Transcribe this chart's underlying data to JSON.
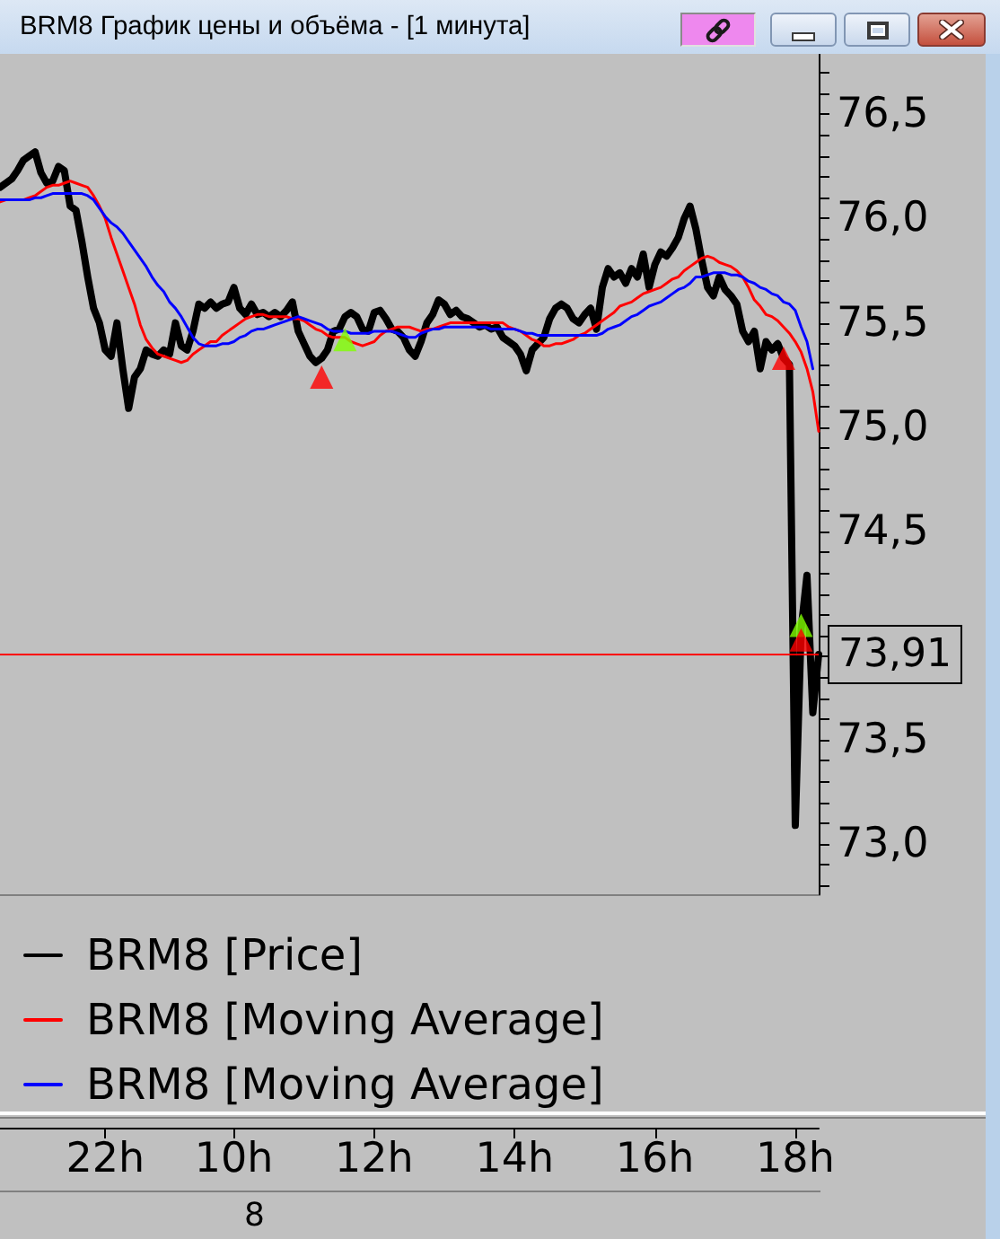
{
  "chart_data": {
    "type": "line",
    "title": "BRM8 График цены и объёма - [1 минута]",
    "categories": [
      null,
      null,
      null,
      null,
      null,
      null,
      null,
      null,
      null,
      null,
      null,
      null,
      null,
      null,
      null,
      null,
      null,
      null,
      "22h",
      null,
      null,
      null,
      null,
      null,
      null,
      null,
      null,
      null,
      null,
      null,
      null,
      null,
      null,
      null,
      null,
      null,
      null,
      null,
      null,
      null,
      "10h",
      null,
      null,
      null,
      null,
      null,
      null,
      null,
      null,
      null,
      null,
      null,
      null,
      null,
      null,
      null,
      null,
      null,
      null,
      null,
      null,
      null,
      null,
      null,
      "12h",
      null,
      null,
      null,
      null,
      null,
      null,
      null,
      null,
      null,
      null,
      null,
      null,
      null,
      null,
      null,
      null,
      null,
      null,
      null,
      null,
      null,
      null,
      null,
      "14h",
      null,
      null,
      null,
      null,
      null,
      null,
      null,
      null,
      null,
      null,
      null,
      null,
      null,
      null,
      null,
      null,
      null,
      null,
      null,
      null,
      null,
      null,
      null,
      "16h",
      null,
      null,
      null,
      null,
      null,
      null,
      null,
      null,
      null,
      null,
      null,
      null,
      null,
      null,
      null,
      null,
      null,
      null,
      null,
      null,
      null,
      null,
      null,
      "18h",
      null,
      null,
      null,
      null
    ],
    "series": [
      {
        "name": "BRM8 [Price]",
        "color": "#000000",
        "values": [
          76.15,
          76.17,
          76.19,
          76.23,
          76.28,
          76.3,
          76.32,
          76.22,
          76.17,
          76.18,
          76.25,
          76.23,
          76.06,
          76.04,
          75.89,
          75.72,
          75.57,
          75.5,
          75.37,
          75.34,
          75.5,
          75.28,
          75.09,
          75.24,
          75.28,
          75.37,
          75.35,
          75.34,
          75.37,
          75.35,
          75.5,
          75.39,
          75.37,
          75.46,
          75.59,
          75.57,
          75.6,
          75.57,
          75.59,
          75.6,
          75.67,
          75.57,
          75.54,
          75.59,
          75.54,
          75.55,
          75.53,
          75.55,
          75.53,
          75.56,
          75.6,
          75.46,
          75.4,
          75.34,
          75.31,
          75.33,
          75.37,
          75.46,
          75.47,
          75.53,
          75.55,
          75.53,
          75.47,
          75.46,
          75.55,
          75.56,
          75.52,
          75.47,
          75.46,
          75.43,
          75.37,
          75.34,
          75.41,
          75.5,
          75.54,
          75.61,
          75.59,
          75.54,
          75.56,
          75.53,
          75.52,
          75.5,
          75.48,
          75.49,
          75.47,
          75.48,
          75.43,
          75.41,
          75.39,
          75.35,
          75.27,
          75.37,
          75.4,
          75.43,
          75.52,
          75.57,
          75.59,
          75.57,
          75.52,
          75.5,
          75.54,
          75.57,
          75.47,
          75.67,
          75.76,
          75.72,
          75.74,
          75.69,
          75.76,
          75.72,
          75.83,
          75.67,
          75.78,
          75.84,
          75.82,
          75.86,
          75.91,
          76.0,
          76.06,
          75.95,
          75.8,
          75.67,
          75.63,
          75.72,
          75.66,
          75.63,
          75.59,
          75.46,
          75.41,
          75.46,
          75.28,
          75.41,
          75.37,
          75.4,
          75.33,
          75.3,
          73.09,
          74.03,
          74.29,
          73.63,
          73.91
        ]
      },
      {
        "name": "BRM8 [Moving Average]",
        "color": "#ff0000",
        "values": [
          76.08,
          76.09,
          76.09,
          76.09,
          76.09,
          76.1,
          76.11,
          76.13,
          76.15,
          76.16,
          76.16,
          76.17,
          76.18,
          76.17,
          76.16,
          76.15,
          76.11,
          76.06,
          76.0,
          75.91,
          75.83,
          75.75,
          75.67,
          75.59,
          75.49,
          75.42,
          75.38,
          75.35,
          75.34,
          75.33,
          75.32,
          75.31,
          75.32,
          75.35,
          75.37,
          75.39,
          75.41,
          75.41,
          75.44,
          75.46,
          75.48,
          75.5,
          75.52,
          75.53,
          75.54,
          75.54,
          75.53,
          75.53,
          75.53,
          75.53,
          75.52,
          75.52,
          75.51,
          75.49,
          75.47,
          75.46,
          75.44,
          75.43,
          75.43,
          75.43,
          75.41,
          75.4,
          75.39,
          75.4,
          75.41,
          75.44,
          75.46,
          75.47,
          75.48,
          75.48,
          75.48,
          75.47,
          75.46,
          75.47,
          75.47,
          75.48,
          75.49,
          75.5,
          75.5,
          75.5,
          75.5,
          75.5,
          75.5,
          75.5,
          75.5,
          75.5,
          75.5,
          75.48,
          75.47,
          75.46,
          75.44,
          75.42,
          75.41,
          75.39,
          75.39,
          75.4,
          75.4,
          75.41,
          75.42,
          75.44,
          75.45,
          75.47,
          75.49,
          75.51,
          75.53,
          75.55,
          75.58,
          75.59,
          75.6,
          75.62,
          75.64,
          75.65,
          75.66,
          75.67,
          75.69,
          75.71,
          75.72,
          75.75,
          75.77,
          75.79,
          75.81,
          75.82,
          75.81,
          75.79,
          75.78,
          75.77,
          75.75,
          75.72,
          75.67,
          75.61,
          75.58,
          75.54,
          75.53,
          75.51,
          75.48,
          75.45,
          75.41,
          75.36,
          75.28,
          75.17,
          74.98
        ]
      },
      {
        "name": "BRM8 [Moving Average]",
        "color": "#0000ff",
        "values": [
          76.09,
          76.09,
          76.09,
          76.09,
          76.09,
          76.09,
          76.1,
          76.1,
          76.11,
          76.12,
          76.12,
          76.12,
          76.12,
          76.12,
          76.12,
          76.11,
          76.09,
          76.05,
          76.01,
          75.98,
          75.96,
          75.93,
          75.89,
          75.85,
          75.81,
          75.77,
          75.72,
          75.68,
          75.65,
          75.6,
          75.57,
          75.53,
          75.48,
          75.43,
          75.4,
          75.39,
          75.39,
          75.39,
          75.4,
          75.4,
          75.41,
          75.43,
          75.44,
          75.46,
          75.47,
          75.47,
          75.48,
          75.49,
          75.5,
          75.51,
          75.52,
          75.53,
          75.52,
          75.51,
          75.5,
          75.49,
          75.47,
          75.46,
          75.46,
          75.46,
          75.45,
          75.45,
          75.45,
          75.45,
          75.46,
          75.46,
          75.46,
          75.46,
          75.45,
          75.44,
          75.43,
          75.43,
          75.45,
          75.46,
          75.47,
          75.47,
          75.48,
          75.48,
          75.48,
          75.48,
          75.48,
          75.48,
          75.48,
          75.48,
          75.47,
          75.47,
          75.47,
          75.47,
          75.47,
          75.46,
          75.45,
          75.45,
          75.44,
          75.44,
          75.44,
          75.44,
          75.44,
          75.44,
          75.44,
          75.44,
          75.44,
          75.44,
          75.44,
          75.45,
          75.47,
          75.48,
          75.49,
          75.51,
          75.53,
          75.54,
          75.56,
          75.58,
          75.59,
          75.6,
          75.62,
          75.64,
          75.66,
          75.67,
          75.69,
          75.72,
          75.72,
          75.73,
          75.74,
          75.74,
          75.74,
          75.73,
          75.73,
          75.72,
          75.7,
          75.69,
          75.67,
          75.66,
          75.64,
          75.63,
          75.6,
          75.59,
          75.56,
          75.48,
          75.41,
          75.28,
          null
        ]
      },
      {
        "type": "scatter",
        "color": "#80ff00",
        "marker": "triangle",
        "values": [
          null,
          null,
          null,
          null,
          null,
          null,
          null,
          null,
          null,
          null,
          null,
          null,
          null,
          null,
          null,
          null,
          null,
          null,
          null,
          null,
          null,
          null,
          null,
          null,
          null,
          null,
          null,
          null,
          null,
          null,
          null,
          null,
          null,
          null,
          null,
          null,
          null,
          null,
          null,
          null,
          null,
          null,
          null,
          null,
          null,
          null,
          null,
          null,
          null,
          null,
          null,
          null,
          null,
          null,
          null,
          null,
          null,
          null,
          null,
          75.42,
          null,
          null,
          null,
          null,
          null,
          null,
          null,
          null,
          null,
          null,
          null,
          null,
          null,
          null,
          null,
          null,
          null,
          null,
          null,
          null,
          null,
          null,
          null,
          null,
          null,
          null,
          null,
          null,
          null,
          null,
          null,
          null,
          null,
          null,
          null,
          null,
          null,
          null,
          null,
          null,
          null,
          null,
          null,
          null,
          null,
          null,
          null,
          null,
          null,
          null,
          null,
          null,
          null,
          null,
          null,
          null,
          null,
          null,
          null,
          null,
          null,
          null,
          null,
          null,
          null,
          null,
          null,
          null,
          null,
          null,
          null,
          null,
          null,
          null,
          null,
          null,
          null,
          74.05,
          null,
          null,
          null
        ]
      },
      {
        "type": "scatter",
        "color": "#ff0000",
        "marker": "triangle",
        "values": [
          null,
          null,
          null,
          null,
          null,
          null,
          null,
          null,
          null,
          null,
          null,
          null,
          null,
          null,
          null,
          null,
          null,
          null,
          null,
          null,
          null,
          null,
          null,
          null,
          null,
          null,
          null,
          null,
          null,
          null,
          null,
          null,
          null,
          null,
          null,
          null,
          null,
          null,
          null,
          null,
          null,
          null,
          null,
          null,
          null,
          null,
          null,
          null,
          null,
          null,
          null,
          null,
          null,
          null,
          null,
          75.24,
          null,
          null,
          null,
          null,
          null,
          null,
          null,
          null,
          null,
          null,
          null,
          null,
          null,
          null,
          null,
          null,
          null,
          null,
          null,
          null,
          null,
          null,
          null,
          null,
          null,
          null,
          null,
          null,
          null,
          null,
          null,
          null,
          null,
          null,
          null,
          null,
          null,
          null,
          null,
          null,
          null,
          null,
          null,
          null,
          null,
          null,
          null,
          null,
          null,
          null,
          null,
          null,
          null,
          null,
          null,
          null,
          null,
          null,
          null,
          null,
          null,
          null,
          null,
          null,
          null,
          null,
          null,
          null,
          null,
          null,
          null,
          null,
          null,
          null,
          null,
          null,
          null,
          null,
          75.33,
          null,
          null,
          73.98,
          null,
          null,
          null
        ]
      }
    ],
    "ylim": [
      72.76,
      76.79
    ],
    "yticks": [
      {
        "value": 72.8,
        "label": null
      },
      {
        "value": 72.9,
        "label": null
      },
      {
        "value": 73,
        "label": "73,0"
      },
      {
        "value": 73.1,
        "label": null
      },
      {
        "value": 73.2,
        "label": null
      },
      {
        "value": 73.3,
        "label": null
      },
      {
        "value": 73.4,
        "label": null
      },
      {
        "value": 73.5,
        "label": "73,5"
      },
      {
        "value": 73.6,
        "label": null
      },
      {
        "value": 73.7,
        "label": null
      },
      {
        "value": 73.8,
        "label": null
      },
      {
        "value": 73.9,
        "label": null
      },
      {
        "value": 74,
        "label": null
      },
      {
        "value": 74.1,
        "label": null
      },
      {
        "value": 74.2,
        "label": null
      },
      {
        "value": 74.3,
        "label": null
      },
      {
        "value": 74.4,
        "label": null
      },
      {
        "value": 74.5,
        "label": "74,5"
      },
      {
        "value": 74.6,
        "label": null
      },
      {
        "value": 74.7,
        "label": null
      },
      {
        "value": 74.8,
        "label": null
      },
      {
        "value": 74.9,
        "label": null
      },
      {
        "value": 75,
        "label": "75,0"
      },
      {
        "value": 75.1,
        "label": null
      },
      {
        "value": 75.2,
        "label": null
      },
      {
        "value": 75.3,
        "label": null
      },
      {
        "value": 75.4,
        "label": null
      },
      {
        "value": 75.5,
        "label": "75,5"
      },
      {
        "value": 75.6,
        "label": null
      },
      {
        "value": 75.7,
        "label": null
      },
      {
        "value": 75.8,
        "label": null
      },
      {
        "value": 75.9,
        "label": null
      },
      {
        "value": 76,
        "label": "76,0"
      },
      {
        "value": 76.1,
        "label": null
      },
      {
        "value": 76.2,
        "label": null
      },
      {
        "value": 76.3,
        "label": null
      },
      {
        "value": 76.4,
        "label": null
      },
      {
        "value": 76.5,
        "label": "76,5"
      },
      {
        "value": 76.6,
        "label": null
      },
      {
        "value": 76.7,
        "label": null
      }
    ],
    "ref_lines": [
      {
        "axis": "y",
        "value": 73.91,
        "label": "73,91",
        "color": "#ff0000"
      }
    ],
    "annotations": [
      "8"
    ],
    "legend": "bottom left",
    "grid": false,
    "marker": "none"
  }
}
